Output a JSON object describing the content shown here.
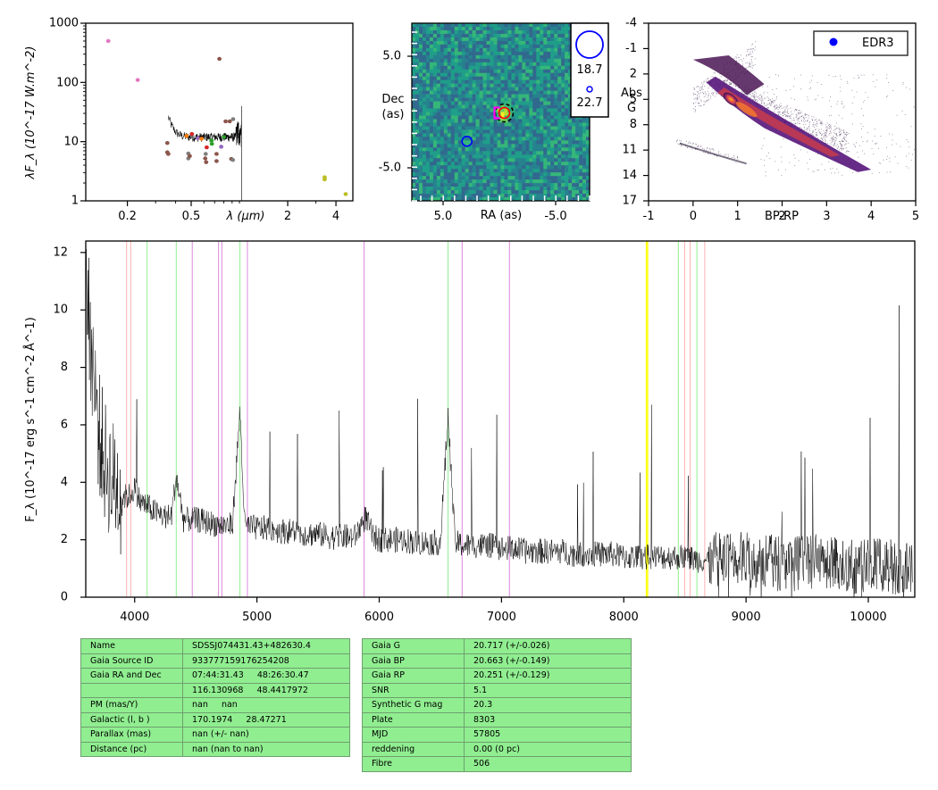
{
  "chart_data": [
    {
      "type": "scatter",
      "id": "sed",
      "xlabel": "λ (μm)",
      "ylabel": "λF_λ (10^-17 W.m^-2)",
      "xscale": "log",
      "yscale": "log",
      "xlim": [
        0.11,
        5.1
      ],
      "ylim": [
        1,
        1000
      ],
      "xtick_labels": [
        "0.2",
        "0.5",
        "2",
        "4"
      ],
      "ytick_labels": [
        "1",
        "10",
        "100",
        "1000"
      ],
      "points": [
        {
          "x": 0.152,
          "y": 500,
          "color": "#e377c2"
        },
        {
          "x": 0.232,
          "y": 110,
          "color": "#e377c2"
        },
        {
          "x": 0.355,
          "y": 9.5,
          "color": "#8c564b"
        },
        {
          "x": 0.355,
          "y": 6.6,
          "color": "#8c564b"
        },
        {
          "x": 0.36,
          "y": 6.2,
          "color": "#8c564b"
        },
        {
          "x": 0.468,
          "y": 12.5,
          "color": "#ff7f0e"
        },
        {
          "x": 0.48,
          "y": 6.3,
          "color": "#7f7f7f"
        },
        {
          "x": 0.48,
          "y": 5.2,
          "color": "#7f7f7f"
        },
        {
          "x": 0.49,
          "y": 5.7,
          "color": "#8c564b"
        },
        {
          "x": 0.505,
          "y": 13.5,
          "color": "#d62728"
        },
        {
          "x": 0.55,
          "y": 11.5,
          "color": "#9467bd"
        },
        {
          "x": 0.58,
          "y": 11.2,
          "color": "#ff7f0e"
        },
        {
          "x": 0.612,
          "y": 5.2,
          "color": "#8c564b"
        },
        {
          "x": 0.62,
          "y": 4.5,
          "color": "#8c564b"
        },
        {
          "x": 0.616,
          "y": 6.2,
          "color": "#7f7f7f"
        },
        {
          "x": 0.625,
          "y": 8.0,
          "color": "#d62728"
        },
        {
          "x": 0.67,
          "y": 10.5,
          "color": "#2ca02c"
        },
        {
          "x": 0.673,
          "y": 9.2,
          "color": "#2ca02c"
        },
        {
          "x": 0.72,
          "y": 4.7,
          "color": "#8c564b"
        },
        {
          "x": 0.72,
          "y": 6.2,
          "color": "#8c564b"
        },
        {
          "x": 0.75,
          "y": 250,
          "color": "#8c564b"
        },
        {
          "x": 0.77,
          "y": 8.2,
          "color": "#9467bd"
        },
        {
          "x": 0.8,
          "y": 12,
          "color": "#2ca02c"
        },
        {
          "x": 0.82,
          "y": 22,
          "color": "#8c564b"
        },
        {
          "x": 0.87,
          "y": 22,
          "color": "#8c564b"
        },
        {
          "x": 0.89,
          "y": 5.1,
          "color": "#8c564b"
        },
        {
          "x": 0.913,
          "y": 24,
          "color": "#7f7f7f"
        },
        {
          "x": 0.91,
          "y": 4.9,
          "color": "#7f7f7f"
        },
        {
          "x": 3.4,
          "y": 2.5,
          "color": "#bcbd22"
        },
        {
          "x": 3.4,
          "y": 2.3,
          "color": "#bcbd22"
        },
        {
          "x": 4.6,
          "y": 1.3,
          "color": "#bcbd22"
        }
      ],
      "spectrum_range_um": [
        0.36,
        1.03
      ]
    },
    {
      "type": "heatmap",
      "id": "image",
      "xlabel": "RA (as)",
      "ylabel": "Dec (as)",
      "xlim": [
        10,
        -10
      ],
      "ylim": [
        -10,
        10
      ],
      "xtick_labels": [
        "5.0",
        "-5.0"
      ],
      "ytick_labels": [
        "5.0",
        "-5.0"
      ],
      "colormap": "viridis",
      "markers": [
        {
          "x": -0.4,
          "y": -0.1,
          "color": "#ff0000",
          "shape": "circle",
          "label": ""
        },
        {
          "x": -0.4,
          "y": -0.1,
          "color": "#000000",
          "shape": "dashed-circle",
          "label": ""
        },
        {
          "x": 0.4,
          "y": -0.1,
          "color": "#ff00ff",
          "shape": "square",
          "label": ""
        },
        {
          "x": 3.8,
          "y": -3.3,
          "color": "#0000ff",
          "shape": "circle",
          "label": ""
        }
      ],
      "legend": [
        {
          "label": "18.7",
          "color": "#0000ff",
          "size": "large"
        },
        {
          "label": "22.7",
          "color": "#0000ff",
          "size": "small"
        }
      ]
    },
    {
      "type": "scatter",
      "id": "cmd",
      "xlabel": "BP-RP",
      "ylabel": "Abs G",
      "xlim": [
        -1,
        5
      ],
      "ylim": [
        17,
        -4
      ],
      "xtick_labels": [
        "-1",
        "0",
        "1",
        "2",
        "3",
        "4",
        "5"
      ],
      "ytick_labels": [
        "-4",
        "-1",
        "2",
        "5",
        "8",
        "11",
        "14",
        "17"
      ],
      "colormap": "inferno density",
      "legend": [
        {
          "label": "EDR3",
          "color": "#0000ff"
        }
      ],
      "target_point": null
    },
    {
      "type": "line",
      "id": "spectrum",
      "xlabel": "",
      "ylabel": "F_λ (10^-17 erg s^-1 cm^-2 Å^-1)",
      "xlim": [
        3600,
        10380
      ],
      "ylim": [
        0,
        12.4
      ],
      "xtick_labels": [
        "4000",
        "5000",
        "6000",
        "7000",
        "8000",
        "9000",
        "10000"
      ],
      "ytick_labels": [
        "0",
        "2",
        "4",
        "6",
        "8",
        "10",
        "12"
      ],
      "series": [
        {
          "name": "",
          "x": [
            3600,
            3650,
            3700,
            3750,
            3800,
            3850,
            3900,
            3950,
            4000,
            4050,
            4100,
            4150,
            4200,
            4250,
            4300,
            4340,
            4400,
            4450,
            4500,
            4600,
            4700,
            4800,
            4861,
            4900,
            5000,
            5100,
            5200,
            5300,
            5400,
            5500,
            5600,
            5700,
            5800,
            5890,
            5950,
            6000,
            6100,
            6200,
            6300,
            6400,
            6500,
            6563,
            6620,
            6700,
            6800,
            6900,
            7000,
            7100,
            7200,
            7300,
            7400,
            7500,
            7600,
            7700,
            7800,
            7900,
            8000,
            8100,
            8200,
            8300,
            8400,
            8500,
            8600,
            8700,
            8800,
            8900,
            9000,
            9100,
            9200,
            9300,
            9400,
            9500,
            9600,
            9700,
            9800,
            9900,
            10000,
            10100,
            10200,
            10300,
            10360
          ],
          "y": [
            11,
            8.5,
            6,
            4.8,
            4.2,
            3.9,
            3.5,
            3.5,
            3.8,
            3.3,
            3.2,
            3.0,
            2.9,
            2.8,
            2.8,
            4.2,
            2.7,
            2.7,
            2.7,
            2.6,
            2.5,
            2.5,
            6.5,
            2.5,
            2.4,
            2.4,
            2.3,
            2.3,
            2.2,
            2.2,
            2.1,
            2.1,
            2.1,
            2.8,
            2.1,
            2.0,
            2.0,
            2.0,
            1.9,
            1.9,
            1.9,
            6.3,
            1.9,
            1.8,
            1.8,
            1.8,
            1.7,
            1.7,
            1.6,
            1.6,
            1.6,
            1.6,
            1.5,
            1.5,
            1.5,
            1.5,
            1.4,
            1.4,
            1.4,
            1.4,
            1.4,
            1.4,
            1.3,
            1.3,
            1.3,
            1.3,
            1.3,
            1.3,
            1.2,
            1.2,
            1.2,
            1.2,
            1.2,
            1.2,
            1.1,
            1.1,
            1.1,
            1.1,
            1.1,
            1.0,
            1.0
          ]
        }
      ],
      "vlines": [
        {
          "x": 3934,
          "color": "#ffb0b0"
        },
        {
          "x": 3968,
          "color": "#ffb0b0"
        },
        {
          "x": 4102,
          "color": "#90ee90"
        },
        {
          "x": 4340,
          "color": "#90ee90"
        },
        {
          "x": 4471,
          "color": "#dd88dd"
        },
        {
          "x": 4686,
          "color": "#dd88dd"
        },
        {
          "x": 4713,
          "color": "#dd88dd"
        },
        {
          "x": 4861,
          "color": "#90ee90"
        },
        {
          "x": 4922,
          "color": "#dd88dd"
        },
        {
          "x": 5876,
          "color": "#dd88dd"
        },
        {
          "x": 6563,
          "color": "#90ee90"
        },
        {
          "x": 6678,
          "color": "#dd88dd"
        },
        {
          "x": 7065,
          "color": "#dd88dd"
        },
        {
          "x": 8185,
          "color": "#ffff00"
        },
        {
          "x": 8195,
          "color": "#ffff00"
        },
        {
          "x": 8446,
          "color": "#90ee90"
        },
        {
          "x": 8498,
          "color": "#ffb0b0"
        },
        {
          "x": 8542,
          "color": "#ffb0b0"
        },
        {
          "x": 8598,
          "color": "#90ee90"
        },
        {
          "x": 8662,
          "color": "#ffb0b0"
        }
      ]
    }
  ],
  "table_left": [
    {
      "key": "Name",
      "value": "SDSSJ074431.43+482630.4"
    },
    {
      "key": "Gaia Source ID",
      "value": "933777159176254208"
    },
    {
      "key": "Gaia RA and Dec",
      "value": "07:44:31.43     48:26:30.47"
    },
    {
      "key": "",
      "value": "116.130968     48.4417972"
    },
    {
      "key": "PM (mas/Y)",
      "value": "nan     nan"
    },
    {
      "key": "Galactic (l, b )",
      "value": "170.1974     28.47271"
    },
    {
      "key": "Parallax (mas)",
      "value": "nan (+/- nan)"
    },
    {
      "key": "Distance (pc)",
      "value": "nan (nan to nan)"
    }
  ],
  "table_right": [
    {
      "key": "Gaia G",
      "value": "20.717 (+/-0.026)"
    },
    {
      "key": "Gaia BP",
      "value": "20.663 (+/-0.149)"
    },
    {
      "key": "Gaia RP",
      "value": "20.251 (+/-0.129)"
    },
    {
      "key": "SNR",
      "value": "5.1"
    },
    {
      "key": "Synthetic G mag",
      "value": "20.3"
    },
    {
      "key": "Plate",
      "value": "8303"
    },
    {
      "key": "MJD",
      "value": "57805"
    },
    {
      "key": "reddening",
      "value": "0.00 (0 pc)"
    },
    {
      "key": "Fibre",
      "value": "506"
    }
  ]
}
